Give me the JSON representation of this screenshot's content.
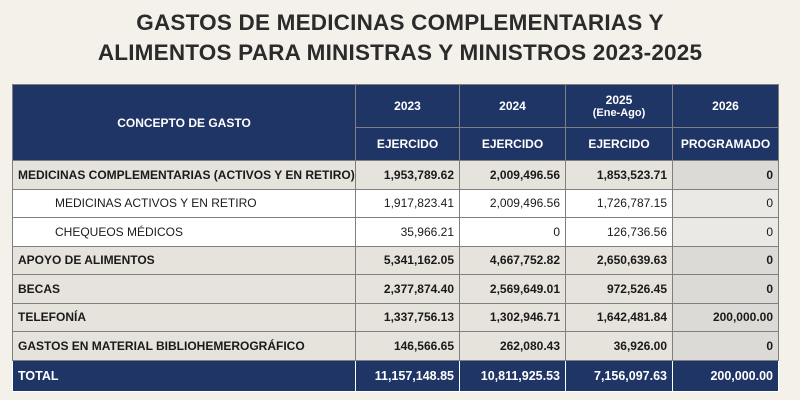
{
  "title": {
    "line1": "GASTOS DE MEDICINAS COMPLEMENTARIAS Y",
    "line2": "ALIMENTOS PARA MINISTRAS Y MINISTROS 2023-2025"
  },
  "header": {
    "concept": "CONCEPTO DE GASTO",
    "years": [
      {
        "year": "2023",
        "sub": "",
        "kind": "EJERCIDO"
      },
      {
        "year": "2024",
        "sub": "",
        "kind": "EJERCIDO"
      },
      {
        "year": "2025",
        "sub": "(Ene-Ago)",
        "kind": "EJERCIDO"
      },
      {
        "year": "2026",
        "sub": "",
        "kind": "PROGRAMADO"
      }
    ]
  },
  "rows": [
    {
      "concept": "MEDICINAS COMPLEMENTARIAS (ACTIVOS Y EN RETIRO)",
      "values": [
        "1,953,789.62",
        "2,009,496.56",
        "1,853,523.71",
        "0"
      ]
    },
    {
      "concept": "MEDICINAS ACTIVOS Y EN RETIRO",
      "values": [
        "1,917,823.41",
        "2,009,496.56",
        "1,726,787.15",
        "0"
      ]
    },
    {
      "concept": "CHEQUEOS MÉDICOS",
      "values": [
        "35,966.21",
        "0",
        "126,736.56",
        "0"
      ]
    },
    {
      "concept": "APOYO DE ALIMENTOS",
      "values": [
        "5,341,162.05",
        "4,667,752.82",
        "2,650,639.63",
        "0"
      ]
    },
    {
      "concept": "BECAS",
      "values": [
        "2,377,874.40",
        "2,569,649.01",
        "972,526.45",
        "0"
      ]
    },
    {
      "concept": "TELEFONÍA",
      "values": [
        "1,337,756.13",
        "1,302,946.71",
        "1,642,481.84",
        "200,000.00"
      ]
    },
    {
      "concept": "GASTOS EN MATERIAL BIBLIOHEMEROGRÁFICO",
      "values": [
        "146,566.65",
        "262,080.43",
        "36,926.00",
        "0"
      ]
    }
  ],
  "total": {
    "concept": "TOTAL",
    "values": [
      "11,157,148.85",
      "10,811,925.53",
      "7,156,097.63",
      "200,000.00"
    ]
  }
}
